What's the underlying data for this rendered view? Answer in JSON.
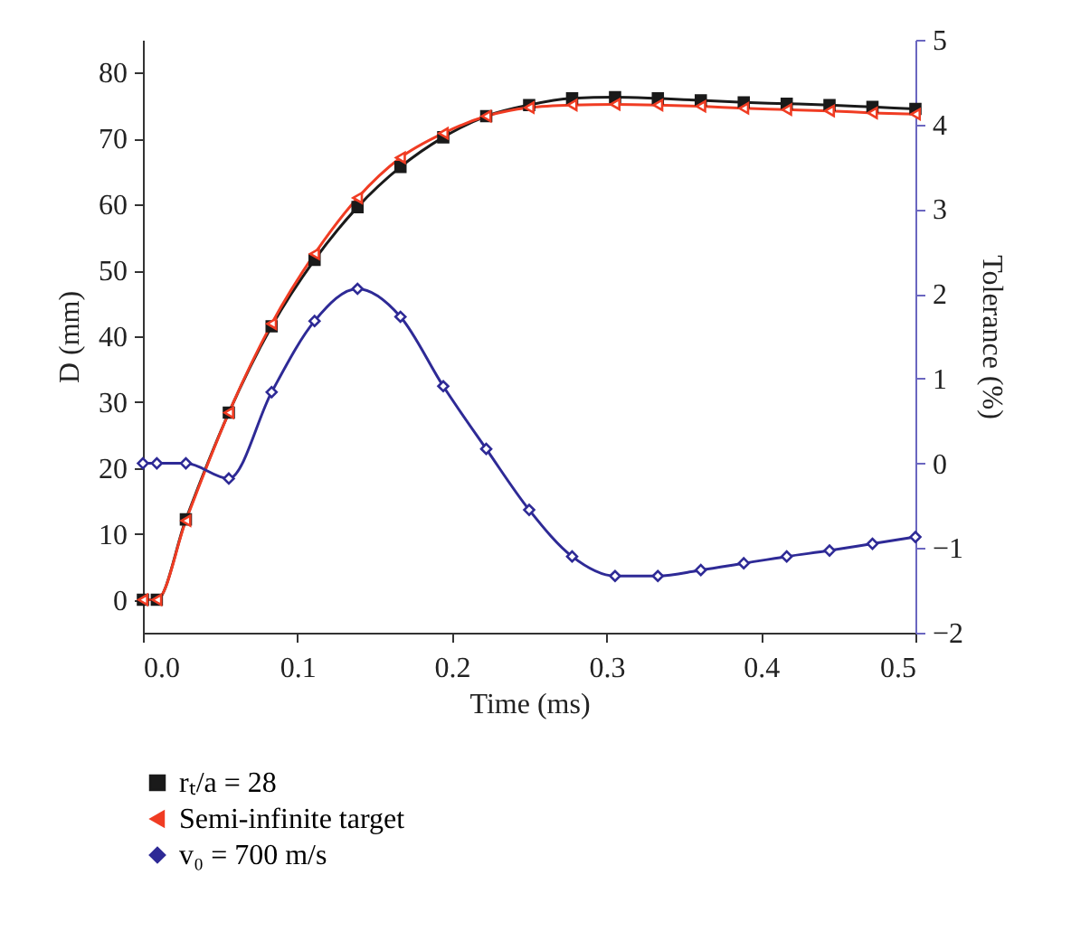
{
  "chart_data": {
    "type": "line",
    "xlabel": "Time (ms)",
    "ylabel": "D (mm)",
    "y2label": "Tolerance (%)",
    "x": [
      0,
      0.009,
      0.0278,
      0.0556,
      0.0833,
      0.1111,
      0.1389,
      0.1667,
      0.1944,
      0.2222,
      0.25,
      0.2778,
      0.3056,
      0.3333,
      0.3611,
      0.3889,
      0.4167,
      0.4444,
      0.4722,
      0.5
    ],
    "series": [
      {
        "name": "rₜ/a = 28",
        "color": "#1a1a1a",
        "marker": "square",
        "values": [
          0,
          0,
          12.2,
          28.4,
          41.5,
          51.6,
          59.6,
          65.7,
          70.2,
          73.4,
          75.1,
          76.1,
          76.3,
          76.1,
          75.8,
          75.5,
          75.3,
          75.1,
          74.8,
          74.5
        ]
      },
      {
        "name": "Semi-infinite target",
        "color": "#f03c23",
        "marker": "triangle",
        "values": [
          0,
          0,
          12,
          28.4,
          41.9,
          52.5,
          61,
          67.1,
          70.8,
          73.4,
          74.7,
          75.1,
          75.2,
          75.1,
          74.9,
          74.6,
          74.4,
          74.2,
          73.9,
          73.7
        ]
      },
      {
        "name": "v₀ = 700 m/s",
        "color": "#2e2a96",
        "marker": "diamond",
        "axis": "y2",
        "values": [
          0,
          0,
          0,
          -0.18,
          0.84,
          1.68,
          2.06,
          1.73,
          0.91,
          0.17,
          -0.55,
          -1.1,
          -1.33,
          -1.33,
          -1.26,
          -1.18,
          -1.1,
          -1.03,
          -0.95,
          -0.87
        ]
      }
    ],
    "xlim": [
      0,
      0.5
    ],
    "xticks": [
      {
        "value": 0,
        "label": "0.0"
      },
      0.1,
      0.2,
      0.3,
      0.4,
      0.5
    ],
    "ylim": [
      -5,
      85
    ],
    "yticks": [
      0,
      10,
      20,
      30,
      40,
      50,
      60,
      70,
      80
    ],
    "y2lim": [
      -2,
      5
    ],
    "y2ticks": [
      -2,
      -1,
      0,
      1,
      2,
      3,
      4,
      5
    ],
    "grid": false,
    "legend": "bottom",
    "line_style": "solid"
  }
}
